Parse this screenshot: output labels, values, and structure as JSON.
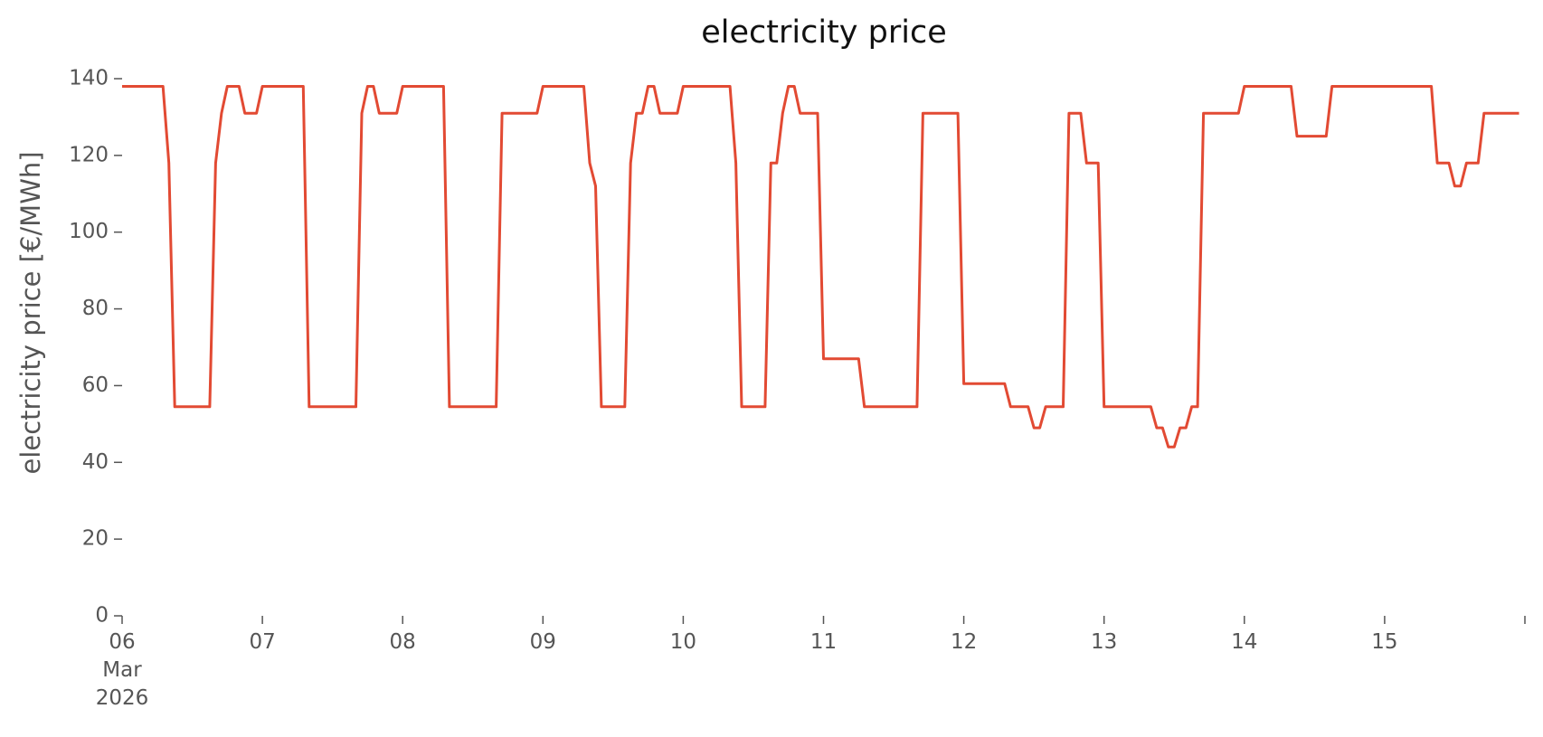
{
  "chart_data": {
    "type": "line",
    "title": "electricity price",
    "ylabel": "electricity price [€/MWh]",
    "series": [
      {
        "name": "electricity price",
        "color": "#e24a33",
        "x": [
          "2026-03-06T00:00",
          "2026-03-06T07:00",
          "2026-03-06T08:00",
          "2026-03-06T09:00",
          "2026-03-06T15:00",
          "2026-03-06T16:00",
          "2026-03-06T17:00",
          "2026-03-06T18:00",
          "2026-03-06T20:00",
          "2026-03-06T21:00",
          "2026-03-06T23:00",
          "2026-03-07T00:00",
          "2026-03-07T07:00",
          "2026-03-07T08:00",
          "2026-03-07T16:00",
          "2026-03-07T17:00",
          "2026-03-07T18:00",
          "2026-03-07T19:00",
          "2026-03-07T20:00",
          "2026-03-07T23:00",
          "2026-03-08T00:00",
          "2026-03-08T07:00",
          "2026-03-08T08:00",
          "2026-03-08T16:00",
          "2026-03-08T17:00",
          "2026-03-08T23:00",
          "2026-03-09T00:00",
          "2026-03-09T07:00",
          "2026-03-09T08:00",
          "2026-03-09T09:00",
          "2026-03-09T10:00",
          "2026-03-09T14:00",
          "2026-03-09T15:00",
          "2026-03-09T16:00",
          "2026-03-09T17:00",
          "2026-03-09T18:00",
          "2026-03-09T19:00",
          "2026-03-09T20:00",
          "2026-03-09T23:00",
          "2026-03-10T00:00",
          "2026-03-10T08:00",
          "2026-03-10T09:00",
          "2026-03-10T10:00",
          "2026-03-10T14:00",
          "2026-03-10T15:00",
          "2026-03-10T16:00",
          "2026-03-10T17:00",
          "2026-03-10T18:00",
          "2026-03-10T19:00",
          "2026-03-10T20:00",
          "2026-03-10T23:00",
          "2026-03-11T00:00",
          "2026-03-11T06:00",
          "2026-03-11T07:00",
          "2026-03-11T16:00",
          "2026-03-11T17:00",
          "2026-03-11T23:00",
          "2026-03-12T00:00",
          "2026-03-12T07:00",
          "2026-03-12T08:00",
          "2026-03-12T11:00",
          "2026-03-12T12:00",
          "2026-03-12T13:00",
          "2026-03-12T14:00",
          "2026-03-12T17:00",
          "2026-03-12T18:00",
          "2026-03-12T20:00",
          "2026-03-12T21:00",
          "2026-03-12T23:00",
          "2026-03-13T00:00",
          "2026-03-13T08:00",
          "2026-03-13T09:00",
          "2026-03-13T10:00",
          "2026-03-13T11:00",
          "2026-03-13T12:00",
          "2026-03-13T13:00",
          "2026-03-13T14:00",
          "2026-03-13T15:00",
          "2026-03-13T16:00",
          "2026-03-13T17:00",
          "2026-03-13T23:00",
          "2026-03-14T00:00",
          "2026-03-14T08:00",
          "2026-03-14T09:00",
          "2026-03-14T14:00",
          "2026-03-14T15:00",
          "2026-03-15T08:00",
          "2026-03-15T09:00",
          "2026-03-15T11:00",
          "2026-03-15T12:00",
          "2026-03-15T13:00",
          "2026-03-15T14:00",
          "2026-03-15T16:00",
          "2026-03-15T17:00",
          "2026-03-15T23:00"
        ],
        "values": [
          138,
          138,
          118,
          54.5,
          54.5,
          118,
          131,
          138,
          138,
          131,
          131,
          138,
          138,
          54.5,
          54.5,
          131,
          138,
          138,
          131,
          131,
          138,
          138,
          54.5,
          54.5,
          131,
          131,
          138,
          138,
          118,
          112,
          54.5,
          54.5,
          118,
          131,
          131,
          138,
          138,
          131,
          131,
          138,
          138,
          118,
          54.5,
          54.5,
          118,
          118,
          131,
          138,
          138,
          131,
          131,
          67,
          67,
          54.5,
          54.5,
          131,
          131,
          60.5,
          60.5,
          54.5,
          54.5,
          49,
          49,
          54.5,
          54.5,
          131,
          131,
          118,
          118,
          54.5,
          54.5,
          49,
          49,
          44,
          44,
          49,
          49,
          54.5,
          54.5,
          131,
          131,
          138,
          138,
          125,
          125,
          138,
          138,
          118,
          118,
          112,
          112,
          118,
          118,
          131,
          131
        ]
      }
    ],
    "xlim": [
      "2026-03-06T00:00",
      "2026-03-16T00:00"
    ],
    "xticks": [
      {
        "value": "2026-03-06T00:00",
        "label": "06\nMar\n2026"
      },
      {
        "value": "2026-03-07T00:00",
        "label": "07"
      },
      {
        "value": "2026-03-08T00:00",
        "label": "08"
      },
      {
        "value": "2026-03-09T00:00",
        "label": "09"
      },
      {
        "value": "2026-03-10T00:00",
        "label": "10"
      },
      {
        "value": "2026-03-11T00:00",
        "label": "11"
      },
      {
        "value": "2026-03-12T00:00",
        "label": "12"
      },
      {
        "value": "2026-03-13T00:00",
        "label": "13"
      },
      {
        "value": "2026-03-14T00:00",
        "label": "14"
      },
      {
        "value": "2026-03-15T00:00",
        "label": "15"
      },
      {
        "value": "2026-03-16T00:00",
        "label": null
      }
    ],
    "ylim": [
      0,
      140
    ],
    "yticks": [
      0,
      20,
      40,
      60,
      80,
      100,
      120,
      140
    ],
    "grid": false
  }
}
